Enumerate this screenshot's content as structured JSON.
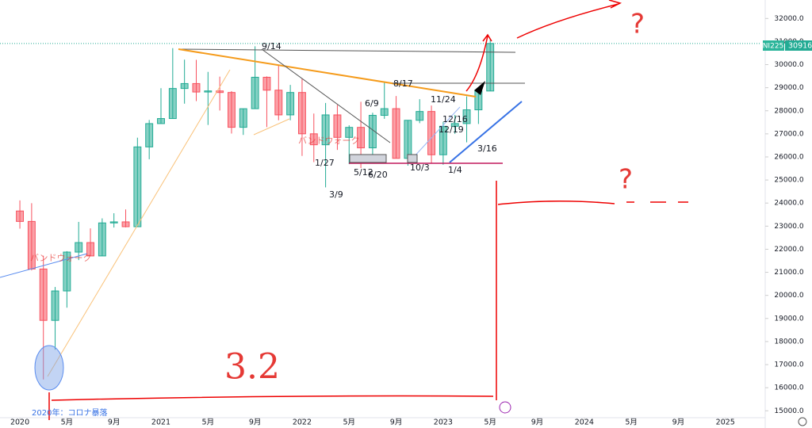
{
  "chart_data": {
    "type": "candlestick",
    "symbol": "NI225",
    "last_price": "30916.2",
    "up_color": "#22ab94",
    "down_color": "#f7525f",
    "x": [
      0,
      1,
      2,
      3,
      4,
      5,
      6,
      7,
      8,
      9,
      10,
      11,
      12,
      13,
      14,
      15,
      16,
      17,
      18,
      19,
      20,
      21,
      22,
      23,
      24,
      25,
      26,
      27,
      28,
      29,
      30,
      31,
      32,
      33,
      34,
      35,
      36,
      37,
      38,
      39,
      40
    ],
    "open": [
      23657,
      23205,
      21143,
      18917,
      20193,
      21877,
      22288,
      21710,
      23140,
      23185,
      22977,
      26434,
      27444,
      27663,
      28966,
      29179,
      28813,
      28860,
      28792,
      27284,
      28090,
      29453,
      28893,
      27822,
      28792,
      27002,
      26527,
      27821,
      26848,
      27280,
      26393,
      27802,
      28092,
      25937,
      27587,
      27969,
      26095,
      27327,
      27446,
      28041,
      28856
    ],
    "high": [
      24116,
      23995,
      21720,
      20365,
      21916,
      23185,
      22904,
      23338,
      23560,
      23725,
      26834,
      27602,
      28979,
      30714,
      30216,
      30208,
      29685,
      29480,
      28852,
      28090,
      30795,
      29490,
      29960,
      29121,
      29388,
      27880,
      28338,
      28252,
      27369,
      28389,
      27915,
      29222,
      28639,
      27599,
      28502,
      28226,
      27522,
      27821,
      28623,
      28969,
      31086
    ],
    "low": [
      22892,
      21082,
      16358,
      17646,
      19468,
      21530,
      21710,
      21710,
      22940,
      22948,
      22977,
      25900,
      27444,
      27663,
      28308,
      28419,
      27385,
      28010,
      27013,
      26954,
      28090,
      27293,
      27589,
      27588,
      26044,
      25775,
      24681,
      26304,
      25688,
      25520,
      25935,
      27651,
      25937,
      25621,
      27463,
      25716,
      25661,
      26999,
      26632,
      27427,
      28856
    ],
    "close": [
      23205,
      21143,
      18917,
      20193,
      21877,
      22288,
      21710,
      23140,
      23185,
      22977,
      26434,
      27444,
      27663,
      28966,
      29179,
      28813,
      28860,
      28792,
      27284,
      28090,
      29453,
      28893,
      27822,
      28792,
      27002,
      26527,
      27821,
      26848,
      27280,
      26393,
      27802,
      28092,
      25937,
      27587,
      27969,
      26095,
      27327,
      27446,
      28041,
      28856,
      30916
    ],
    "xlim": [
      -1.69,
      63.05
    ],
    "xticks": [
      {
        "value": 0,
        "label": "2020"
      },
      {
        "value": 4,
        "label": "5月"
      },
      {
        "value": 8,
        "label": "9月"
      },
      {
        "value": 12,
        "label": "2021"
      },
      {
        "value": 16,
        "label": "5月"
      },
      {
        "value": 20,
        "label": "9月"
      },
      {
        "value": 24,
        "label": "2022"
      },
      {
        "value": 28,
        "label": "5月"
      },
      {
        "value": 32,
        "label": "9月"
      },
      {
        "value": 36,
        "label": "2023"
      },
      {
        "value": 40,
        "label": "5月"
      },
      {
        "value": 44,
        "label": "9月"
      },
      {
        "value": 48,
        "label": "2024"
      },
      {
        "value": 52,
        "label": "5月"
      },
      {
        "value": 56,
        "label": "9月"
      },
      {
        "value": 60,
        "label": "2025"
      }
    ],
    "ylim": [
      14700,
      32800
    ],
    "yticks": [
      {
        "value": 15000,
        "label": "15000.0"
      },
      {
        "value": 16000,
        "label": "16000.0"
      },
      {
        "value": 17000,
        "label": "17000.0"
      },
      {
        "value": 18000,
        "label": "18000.0"
      },
      {
        "value": 19000,
        "label": "19000.0"
      },
      {
        "value": 20000,
        "label": "20000.0"
      },
      {
        "value": 21000,
        "label": "21000.0"
      },
      {
        "value": 22000,
        "label": "22000.0"
      },
      {
        "value": 23000,
        "label": "23000.0"
      },
      {
        "value": 24000,
        "label": "24000.0"
      },
      {
        "value": 25000,
        "label": "25000.0"
      },
      {
        "value": 26000,
        "label": "26000.0"
      },
      {
        "value": 27000,
        "label": "27000.0"
      },
      {
        "value": 28000,
        "label": "28000.0"
      },
      {
        "value": 29000,
        "label": "29000.0"
      },
      {
        "value": 30000,
        "label": "30000.0"
      },
      {
        "value": 31000,
        "label": "31000.0"
      },
      {
        "value": 32000,
        "label": "32000.0"
      }
    ],
    "annotations": [
      "9/14",
      "8/17",
      "6/9",
      "11/24",
      "12/16",
      "12/19",
      "1/27",
      "5/12",
      "6/20",
      "3/9",
      "10/3",
      "1/4",
      "3/16",
      "バンドウォーク",
      "バンドウォーク",
      "2020年：コロナ暴落",
      "3.2",
      "?",
      "?"
    ]
  }
}
